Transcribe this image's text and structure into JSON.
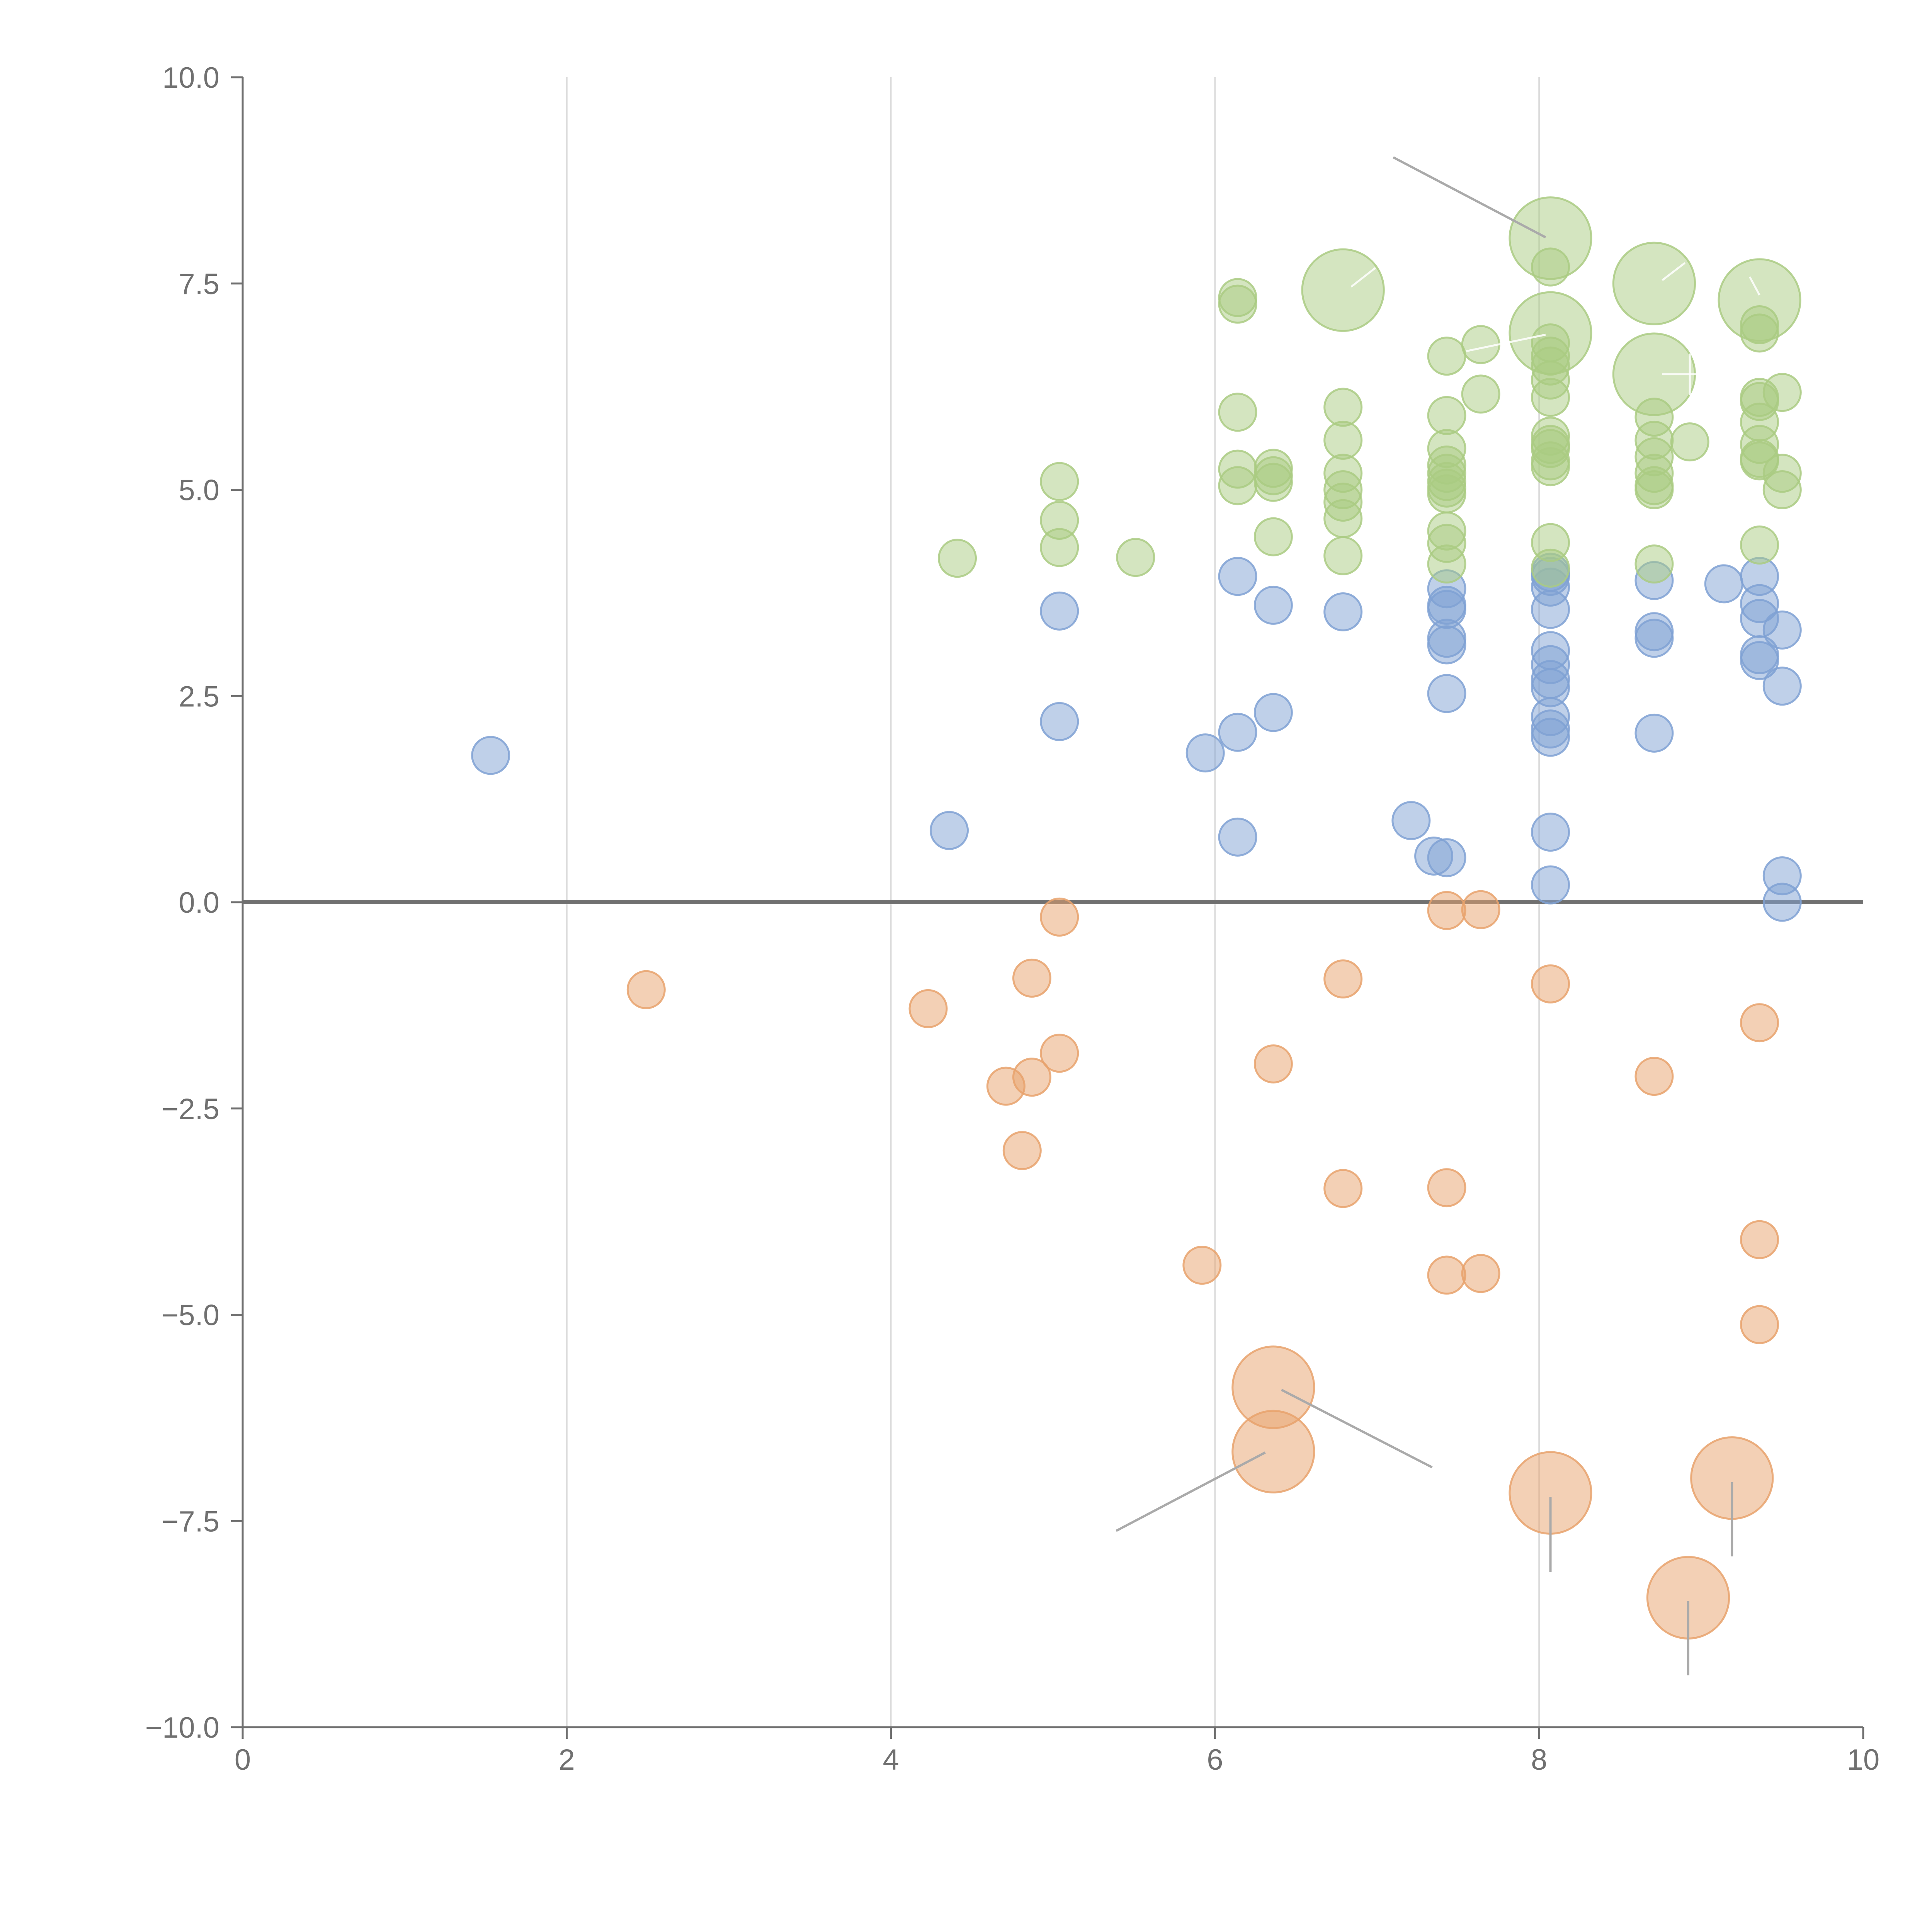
{
  "chart_data": {
    "type": "scatter",
    "title": "",
    "xlabel": "",
    "ylabel": "",
    "xlim": [
      0,
      10
    ],
    "ylim": [
      -10,
      10
    ],
    "x_ticks": [
      0,
      2,
      4,
      6,
      8,
      10
    ],
    "x_tick_labels": [
      "0",
      "2",
      "4",
      "6",
      "8",
      "10"
    ],
    "y_ticks": [
      -10,
      -7.5,
      -5,
      -2.5,
      0,
      2.5,
      5,
      7.5,
      10
    ],
    "y_tick_labels": [
      "−10.0",
      "−7.5",
      "−5.0",
      "−2.5",
      "0.0",
      "2.5",
      "5.0",
      "7.5",
      "10.0"
    ],
    "grid": {
      "vertical": true,
      "horizontal": false
    },
    "zero_line": true,
    "legend": "none",
    "colors": {
      "blue": "#7FA1D4",
      "orange": "#E8A26C",
      "green": "#AACB82",
      "axis": "#707070",
      "grid": "#DCDCDC",
      "leader": "#AAAAAA"
    },
    "series": [
      {
        "name": "blue",
        "color": "#7FA1D4",
        "points": [
          [
            1.53,
            1.78,
            1
          ],
          [
            4.36,
            0.87,
            1
          ],
          [
            5.04,
            3.53,
            1
          ],
          [
            5.04,
            2.19,
            1
          ],
          [
            5.94,
            1.81,
            1
          ],
          [
            6.14,
            3.95,
            1
          ],
          [
            6.14,
            2.06,
            1
          ],
          [
            6.14,
            0.79,
            1
          ],
          [
            6.36,
            3.6,
            1
          ],
          [
            6.36,
            2.3,
            1
          ],
          [
            6.79,
            3.52,
            1
          ],
          [
            7.21,
            0.99,
            1
          ],
          [
            7.35,
            0.56,
            1
          ],
          [
            7.43,
            0.54,
            1
          ],
          [
            7.43,
            3.8,
            1
          ],
          [
            7.43,
            3.6,
            1
          ],
          [
            7.43,
            3.55,
            1
          ],
          [
            7.43,
            3.2,
            1
          ],
          [
            7.43,
            3.12,
            1
          ],
          [
            7.43,
            2.53,
            1
          ],
          [
            8.07,
            4.0,
            1
          ],
          [
            8.07,
            3.95,
            1
          ],
          [
            8.07,
            3.82,
            1
          ],
          [
            8.07,
            3.55,
            1
          ],
          [
            8.07,
            3.05,
            1
          ],
          [
            8.07,
            2.88,
            1
          ],
          [
            8.07,
            2.7,
            1
          ],
          [
            8.07,
            2.6,
            1
          ],
          [
            8.07,
            2.25,
            1
          ],
          [
            8.07,
            2.1,
            1
          ],
          [
            8.07,
            2.0,
            1
          ],
          [
            8.07,
            0.85,
            1
          ],
          [
            8.07,
            0.21,
            1
          ],
          [
            8.71,
            3.9,
            1
          ],
          [
            8.71,
            3.28,
            1
          ],
          [
            8.71,
            3.2,
            1
          ],
          [
            8.71,
            2.05,
            1
          ],
          [
            9.14,
            3.86,
            1
          ],
          [
            9.36,
            3.95,
            1
          ],
          [
            9.36,
            3.62,
            1
          ],
          [
            9.36,
            3.44,
            1
          ],
          [
            9.36,
            3.0,
            1
          ],
          [
            9.36,
            2.93,
            1
          ],
          [
            9.5,
            3.3,
            1
          ],
          [
            9.5,
            2.62,
            1
          ],
          [
            9.5,
            0.32,
            1
          ],
          [
            9.5,
            0.0,
            1
          ]
        ]
      },
      {
        "name": "orange",
        "color": "#E8A26C",
        "points": [
          [
            2.49,
            -1.06,
            1
          ],
          [
            4.23,
            -1.29,
            1
          ],
          [
            4.71,
            -2.23,
            1
          ],
          [
            4.81,
            -3.01,
            1
          ],
          [
            4.87,
            -0.92,
            1
          ],
          [
            4.87,
            -2.12,
            1
          ],
          [
            5.04,
            -1.83,
            1
          ],
          [
            5.04,
            -0.18,
            1
          ],
          [
            5.92,
            -4.4,
            1
          ],
          [
            6.36,
            -1.96,
            1
          ],
          [
            6.79,
            -0.93,
            1
          ],
          [
            6.79,
            -3.47,
            1
          ],
          [
            7.43,
            -0.1,
            1
          ],
          [
            7.43,
            -3.46,
            1
          ],
          [
            7.43,
            -4.52,
            1
          ],
          [
            7.64,
            -0.09,
            1
          ],
          [
            7.64,
            -4.5,
            1
          ],
          [
            8.07,
            -0.99,
            1
          ],
          [
            8.71,
            -2.11,
            1
          ],
          [
            9.36,
            -1.46,
            1
          ],
          [
            9.36,
            -4.09,
            1
          ],
          [
            9.36,
            -5.12,
            1
          ],
          [
            6.36,
            -5.88,
            2.2
          ],
          [
            6.36,
            -6.66,
            2.2
          ],
          [
            8.07,
            -7.16,
            2.2
          ],
          [
            8.92,
            -8.43,
            2.2
          ],
          [
            9.19,
            -6.98,
            2.2
          ]
        ]
      },
      {
        "name": "green",
        "color": "#AACB82",
        "points": [
          [
            4.41,
            4.17,
            1
          ],
          [
            5.04,
            5.1,
            1
          ],
          [
            5.04,
            4.63,
            1
          ],
          [
            5.04,
            4.3,
            1
          ],
          [
            5.51,
            4.18,
            1
          ],
          [
            6.14,
            7.33,
            1
          ],
          [
            6.14,
            7.25,
            1
          ],
          [
            6.14,
            5.94,
            1
          ],
          [
            6.14,
            5.25,
            1
          ],
          [
            6.14,
            5.05,
            1
          ],
          [
            6.36,
            5.26,
            1
          ],
          [
            6.36,
            5.17,
            1
          ],
          [
            6.36,
            5.09,
            1
          ],
          [
            6.36,
            4.43,
            1
          ],
          [
            6.79,
            6.0,
            1
          ],
          [
            6.79,
            5.6,
            1
          ],
          [
            6.79,
            5.2,
            1
          ],
          [
            6.79,
            5.0,
            1
          ],
          [
            6.79,
            4.85,
            1
          ],
          [
            6.79,
            4.65,
            1
          ],
          [
            6.79,
            4.2,
            1
          ],
          [
            7.43,
            6.62,
            1
          ],
          [
            7.43,
            5.9,
            1
          ],
          [
            7.43,
            5.5,
            1
          ],
          [
            7.43,
            5.3,
            1
          ],
          [
            7.43,
            5.2,
            1
          ],
          [
            7.43,
            5.1,
            1
          ],
          [
            7.43,
            5.02,
            1
          ],
          [
            7.43,
            4.95,
            1
          ],
          [
            7.43,
            4.5,
            1
          ],
          [
            7.43,
            4.35,
            1
          ],
          [
            7.43,
            4.1,
            1
          ],
          [
            7.64,
            6.76,
            1
          ],
          [
            7.64,
            6.16,
            1
          ],
          [
            8.07,
            7.7,
            1
          ],
          [
            8.07,
            6.78,
            1
          ],
          [
            8.07,
            6.62,
            1
          ],
          [
            8.07,
            6.5,
            1
          ],
          [
            8.07,
            6.33,
            1
          ],
          [
            8.07,
            6.12,
            1
          ],
          [
            8.07,
            5.65,
            1
          ],
          [
            8.07,
            5.55,
            1
          ],
          [
            8.07,
            5.5,
            1
          ],
          [
            8.07,
            5.35,
            1
          ],
          [
            8.07,
            5.28,
            1
          ],
          [
            8.07,
            4.36,
            1
          ],
          [
            8.07,
            4.05,
            1
          ],
          [
            8.71,
            5.88,
            1
          ],
          [
            8.71,
            5.6,
            1
          ],
          [
            8.71,
            5.4,
            1
          ],
          [
            8.71,
            5.2,
            1
          ],
          [
            8.71,
            5.05,
            1
          ],
          [
            8.71,
            5.0,
            1
          ],
          [
            8.71,
            4.1,
            1
          ],
          [
            8.93,
            5.58,
            1
          ],
          [
            9.36,
            7.0,
            1
          ],
          [
            9.36,
            6.9,
            1
          ],
          [
            9.36,
            6.12,
            1
          ],
          [
            9.36,
            6.07,
            1
          ],
          [
            9.36,
            5.82,
            1
          ],
          [
            9.36,
            5.55,
            1
          ],
          [
            9.36,
            5.38,
            1
          ],
          [
            9.36,
            5.35,
            1
          ],
          [
            9.36,
            4.33,
            1
          ],
          [
            9.5,
            6.18,
            1
          ],
          [
            9.5,
            5.2,
            1
          ],
          [
            9.5,
            5.0,
            1
          ],
          [
            6.79,
            7.42,
            2.2
          ],
          [
            8.07,
            8.05,
            2.2
          ],
          [
            8.07,
            6.9,
            2.2
          ],
          [
            8.71,
            7.5,
            2.2
          ],
          [
            8.71,
            6.4,
            2.2
          ],
          [
            9.36,
            7.3,
            2.2
          ]
        ]
      }
    ],
    "annotation_lines": [
      {
        "from": [
          8.04,
          8.06
        ],
        "to": [
          7.1,
          9.03
        ],
        "style": "gray"
      },
      {
        "from": [
          6.41,
          -5.91
        ],
        "to": [
          7.34,
          -6.85
        ],
        "style": "gray"
      },
      {
        "from": [
          6.31,
          -6.67
        ],
        "to": [
          5.39,
          -7.62
        ],
        "style": "gray"
      },
      {
        "from": [
          8.07,
          -7.21
        ],
        "to": [
          8.07,
          -8.12
        ],
        "style": "gray"
      },
      {
        "from": [
          8.92,
          -8.47
        ],
        "to": [
          8.92,
          -9.37
        ],
        "style": "gray"
      },
      {
        "from": [
          9.19,
          -7.03
        ],
        "to": [
          9.19,
          -7.93
        ],
        "style": "gray"
      },
      {
        "from": [
          6.84,
          7.46
        ],
        "to": [
          6.99,
          7.69
        ],
        "style": "white"
      },
      {
        "from": [
          8.04,
          6.88
        ],
        "to": [
          7.55,
          6.68
        ],
        "style": "white"
      },
      {
        "from": [
          8.76,
          7.54
        ],
        "to": [
          8.9,
          7.75
        ],
        "style": "white"
      },
      {
        "from": [
          9.36,
          7.36
        ],
        "to": [
          9.3,
          7.58
        ],
        "style": "white"
      },
      {
        "from": [
          8.76,
          6.4
        ],
        "to": [
          9.05,
          6.4
        ],
        "style": "white"
      },
      {
        "from": [
          8.93,
          6.15
        ],
        "to": [
          8.93,
          6.65
        ],
        "style": "white"
      }
    ]
  }
}
